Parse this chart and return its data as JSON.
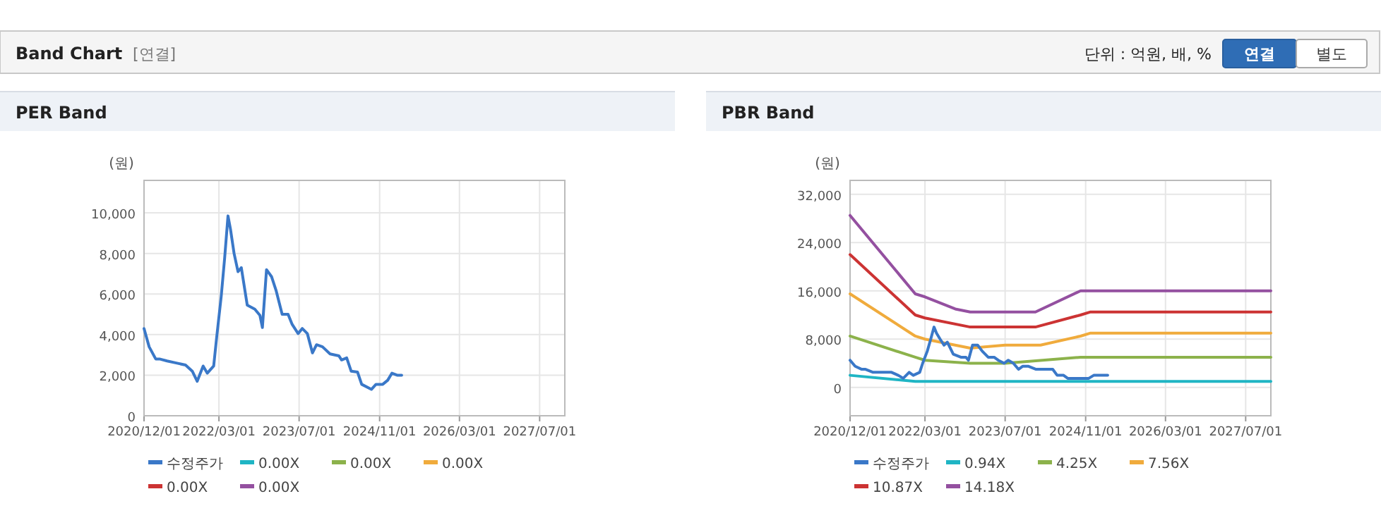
{
  "chart_data": [
    {
      "type": "other",
      "title": "Band Chart",
      "subtitle": "[연결]",
      "annotations": [
        "단위 : 억원, 배, %",
        "연결",
        "별도"
      ]
    },
    {
      "type": "line",
      "title": "PER Band",
      "ylabel": "(원)",
      "xlim": [
        "2020-12-01",
        "2027-12-01"
      ],
      "ylim": [
        0,
        11600
      ],
      "xticks": [
        {
          "value": "2020-12-01",
          "label": "2020/12/01"
        },
        {
          "value": "2022-03-01",
          "label": "2022/03/01"
        },
        {
          "value": "2023-07-01",
          "label": "2023/07/01"
        },
        {
          "value": "2024-11-01",
          "label": "2024/11/01"
        },
        {
          "value": "2026-03-01",
          "label": "2026/03/01"
        },
        {
          "value": "2027-07-01",
          "label": "2027/07/01"
        }
      ],
      "yticks": [
        0,
        {
          "value": 2000,
          "label": "2,000"
        },
        {
          "value": 4000,
          "label": "4,000"
        },
        {
          "value": 6000,
          "label": "6,000"
        },
        {
          "value": 8000,
          "label": "8,000"
        },
        {
          "value": 10000,
          "label": "10,000"
        }
      ],
      "grid": true,
      "legend": "bottom",
      "marker": "none",
      "line_style": "solid",
      "series": [
        {
          "name": "수정주가",
          "color": "#3a78c8",
          "x": [
            "2020-12-01",
            "2021-01-01",
            "2021-02-10",
            "2021-03-05",
            "2021-04-20",
            "2021-06-15",
            "2021-08-10",
            "2021-09-20",
            "2021-10-20",
            "2021-11-25",
            "2021-12-20",
            "2022-01-28",
            "2022-02-15",
            "2022-03-15",
            "2022-04-05",
            "2022-04-25",
            "2022-05-10",
            "2022-06-01",
            "2022-06-25",
            "2022-07-15",
            "2022-08-20",
            "2022-10-05",
            "2022-11-05",
            "2022-11-20",
            "2022-12-15",
            "2023-01-15",
            "2023-02-12",
            "2023-03-20",
            "2023-04-25",
            "2023-05-20",
            "2023-06-25",
            "2023-07-20",
            "2023-08-20",
            "2023-09-20",
            "2023-10-15",
            "2023-11-20",
            "2024-01-05",
            "2024-02-28",
            "2024-03-15",
            "2024-04-15",
            "2024-05-12",
            "2024-06-20",
            "2024-07-15",
            "2024-09-12",
            "2024-10-10",
            "2024-11-20",
            "2024-12-20",
            "2025-01-15",
            "2025-02-15",
            "2025-03-15"
          ],
          "values": [
            4300,
            3400,
            2800,
            2800,
            2700,
            2600,
            2500,
            2200,
            1700,
            2450,
            2100,
            2450,
            3850,
            5900,
            7800,
            9850,
            9200,
            8000,
            7100,
            7300,
            5450,
            5250,
            4950,
            4350,
            7200,
            6850,
            6150,
            5000,
            5000,
            4500,
            4050,
            4300,
            4050,
            3100,
            3500,
            3400,
            3050,
            2950,
            2750,
            2850,
            2200,
            2150,
            1550,
            1300,
            1550,
            1550,
            1750,
            2100,
            2000,
            2000
          ]
        },
        {
          "name": "0.00X",
          "color": "#1fb5c4"
        },
        {
          "name": "0.00X",
          "color": "#8cb24b"
        },
        {
          "name": "0.00X",
          "color": "#f0ab3c"
        },
        {
          "name": "0.00X",
          "color": "#cc3333"
        },
        {
          "name": "0.00X",
          "color": "#9450a0"
        }
      ]
    },
    {
      "type": "line",
      "title": "PBR Band",
      "ylabel": "(원)",
      "xlim": [
        "2020-12-01",
        "2027-12-01"
      ],
      "ylim": [
        -4700,
        34300
      ],
      "xticks": [
        {
          "value": "2020-12-01",
          "label": "2020/12/01"
        },
        {
          "value": "2022-03-01",
          "label": "2022/03/01"
        },
        {
          "value": "2023-07-01",
          "label": "2023/07/01"
        },
        {
          "value": "2024-11-01",
          "label": "2024/11/01"
        },
        {
          "value": "2026-03-01",
          "label": "2026/03/01"
        },
        {
          "value": "2027-07-01",
          "label": "2027/07/01"
        }
      ],
      "yticks": [
        0,
        {
          "value": 8000,
          "label": "8,000"
        },
        {
          "value": 16000,
          "label": "16,000"
        },
        {
          "value": 24000,
          "label": "24,000"
        },
        {
          "value": 32000,
          "label": "32,000"
        }
      ],
      "grid": true,
      "legend": "bottom",
      "marker": "none",
      "line_style": "solid",
      "series": [
        {
          "name": "수정주가",
          "color": "#3a78c8",
          "x": [
            "2020-12-01",
            "2021-01-01",
            "2021-02-10",
            "2021-03-05",
            "2021-04-20",
            "2021-06-15",
            "2021-08-10",
            "2021-09-20",
            "2021-10-20",
            "2021-11-25",
            "2021-12-20",
            "2022-01-28",
            "2022-02-15",
            "2022-03-15",
            "2022-04-05",
            "2022-04-25",
            "2022-05-10",
            "2022-06-01",
            "2022-06-25",
            "2022-07-15",
            "2022-08-20",
            "2022-10-05",
            "2022-11-05",
            "2022-11-20",
            "2022-12-15",
            "2023-01-15",
            "2023-02-12",
            "2023-03-20",
            "2023-04-25",
            "2023-05-20",
            "2023-06-25",
            "2023-07-20",
            "2023-08-20",
            "2023-09-20",
            "2023-10-15",
            "2023-11-20",
            "2024-01-05",
            "2024-02-28",
            "2024-03-15",
            "2024-04-15",
            "2024-05-12",
            "2024-06-20",
            "2024-07-15",
            "2024-09-12",
            "2024-10-10",
            "2024-11-20",
            "2024-12-20",
            "2025-01-15",
            "2025-02-15",
            "2025-03-15"
          ],
          "values": [
            4500,
            3500,
            3000,
            3000,
            2500,
            2500,
            2500,
            2000,
            1500,
            2500,
            2000,
            2500,
            4000,
            6000,
            8000,
            10000,
            9000,
            8000,
            7000,
            7500,
            5500,
            5000,
            5000,
            4500,
            7000,
            7000,
            6000,
            5000,
            5000,
            4500,
            4000,
            4500,
            4000,
            3000,
            3500,
            3500,
            3000,
            3000,
            3000,
            3000,
            2000,
            2000,
            1500,
            1500,
            1500,
            1500,
            2000,
            2000,
            2000,
            2000
          ]
        },
        {
          "name": "0.94X",
          "color": "#1fb5c4",
          "x": [
            "2020-12-01",
            "2022-01-01",
            "2022-07-01",
            "2024-12-01",
            "2027-12-01"
          ],
          "values": [
            2000,
            1000,
            1000,
            1000,
            1000
          ]
        },
        {
          "name": "4.25X",
          "color": "#8cb24b",
          "x": [
            "2020-12-01",
            "2022-01-01",
            "2022-03-01",
            "2022-12-01",
            "2023-07-01",
            "2024-10-01",
            "2024-12-01",
            "2027-12-01"
          ],
          "values": [
            8500,
            5000,
            4500,
            4000,
            4000,
            5000,
            5000,
            5000
          ]
        },
        {
          "name": "7.56X",
          "color": "#f0ab3c",
          "x": [
            "2020-12-01",
            "2022-01-01",
            "2022-03-01",
            "2022-12-01",
            "2023-07-01",
            "2024-02-01",
            "2024-10-01",
            "2024-12-01",
            "2027-12-01"
          ],
          "values": [
            15500,
            8500,
            8000,
            6500,
            7000,
            7000,
            8500,
            9000,
            9000
          ]
        },
        {
          "name": "10.87X",
          "color": "#cc3333",
          "x": [
            "2020-12-01",
            "2022-01-01",
            "2022-03-01",
            "2022-12-01",
            "2023-07-01",
            "2024-01-01",
            "2024-10-01",
            "2024-12-01",
            "2027-12-01"
          ],
          "values": [
            22000,
            12000,
            11500,
            10000,
            10000,
            10000,
            12000,
            12500,
            12500
          ]
        },
        {
          "name": "14.18X",
          "color": "#9450a0",
          "x": [
            "2020-12-01",
            "2022-01-01",
            "2022-03-01",
            "2022-09-01",
            "2022-12-01",
            "2023-07-01",
            "2024-01-01",
            "2024-10-01",
            "2024-12-01",
            "2027-12-01"
          ],
          "values": [
            28500,
            15500,
            15000,
            13000,
            12500,
            12500,
            12500,
            16000,
            16000,
            16000
          ]
        }
      ]
    }
  ]
}
